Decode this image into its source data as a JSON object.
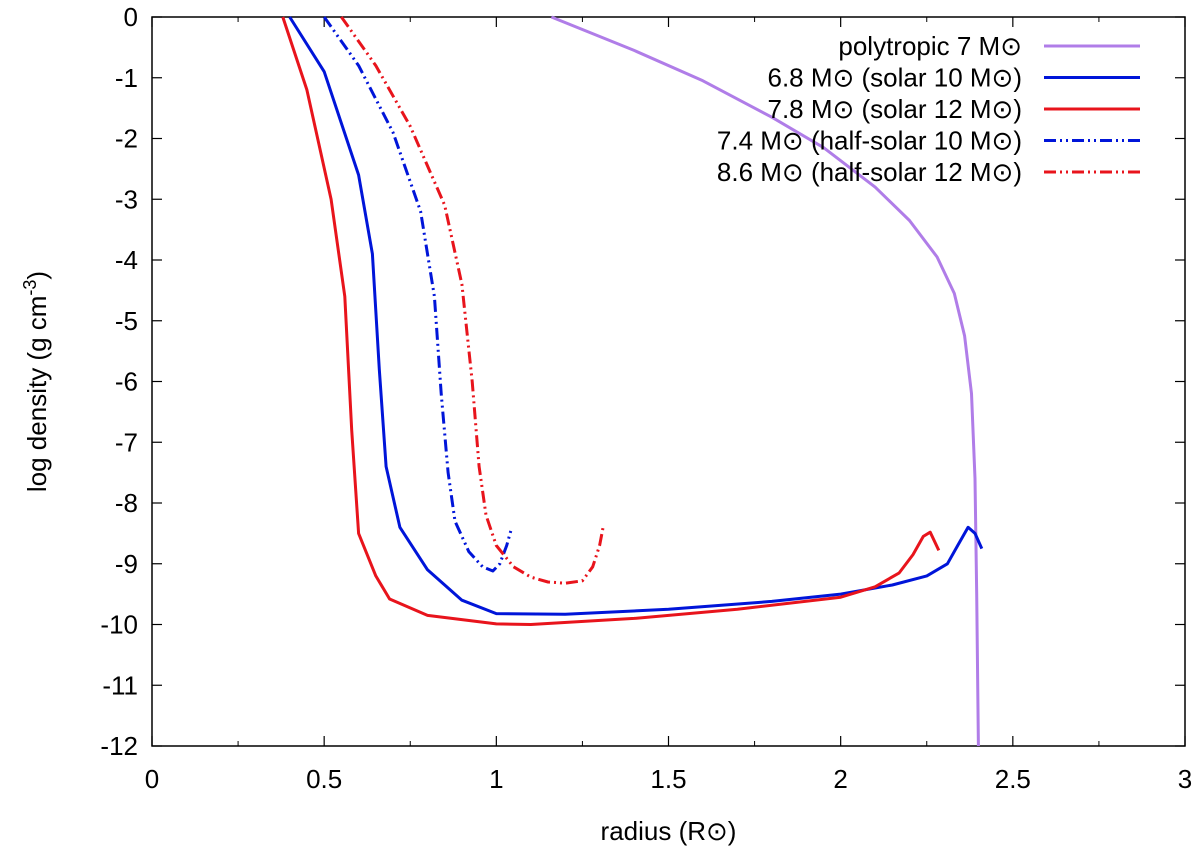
{
  "chart_data": {
    "type": "line",
    "xlabel": "radius (R⊙)",
    "ylabel_prefix": "log density (g cm",
    "ylabel_exponent": "-3",
    "ylabel_suffix": ")",
    "xlim": [
      0,
      3
    ],
    "ylim": [
      -12,
      0
    ],
    "xticks": [
      0,
      0.5,
      1,
      1.5,
      2,
      2.5,
      3
    ],
    "xtick_labels": [
      "0",
      "0.5",
      "1",
      "1.5",
      "2",
      "2.5",
      "3"
    ],
    "yticks": [
      0,
      -1,
      -2,
      -3,
      -4,
      -5,
      -6,
      -7,
      -8,
      -9,
      -10,
      -11,
      -12
    ],
    "ytick_labels": [
      "0",
      "-1",
      "-2",
      "-3",
      "-4",
      "-5",
      "-6",
      "-7",
      "-8",
      "-9",
      "-10",
      "-11",
      "-12"
    ],
    "grid": false,
    "legend_position": "top-right",
    "series": [
      {
        "name": "polytropic 7 M⊙",
        "color": "#b07de8",
        "dash": "solid",
        "x": [
          1.16,
          1.4,
          1.6,
          1.8,
          1.95,
          2.1,
          2.2,
          2.28,
          2.33,
          2.36,
          2.38,
          2.39,
          2.395,
          2.4
        ],
        "y": [
          0,
          -0.55,
          -1.05,
          -1.65,
          -2.15,
          -2.8,
          -3.35,
          -3.95,
          -4.55,
          -5.25,
          -6.2,
          -7.6,
          -9.5,
          -12
        ]
      },
      {
        "name": "6.8 M⊙ (solar 10 M⊙)",
        "color": "#0015d9",
        "dash": "solid",
        "x": [
          0.4,
          0.5,
          0.6,
          0.64,
          0.66,
          0.68,
          0.72,
          0.8,
          0.9,
          1.0,
          1.2,
          1.5,
          1.8,
          2.0,
          2.15,
          2.25,
          2.31,
          2.34,
          2.37,
          2.39,
          2.41
        ],
        "y": [
          0,
          -0.9,
          -2.6,
          -3.9,
          -5.8,
          -7.4,
          -8.4,
          -9.1,
          -9.6,
          -9.82,
          -9.83,
          -9.75,
          -9.62,
          -9.5,
          -9.35,
          -9.2,
          -9.0,
          -8.7,
          -8.4,
          -8.5,
          -8.75
        ]
      },
      {
        "name": "7.8 M⊙ (solar 12 M⊙)",
        "color": "#e8141c",
        "dash": "solid",
        "x": [
          0.38,
          0.45,
          0.52,
          0.56,
          0.58,
          0.6,
          0.65,
          0.69,
          0.8,
          1.0,
          1.1,
          1.4,
          1.7,
          2.0,
          2.1,
          2.17,
          2.21,
          2.24,
          2.26,
          2.285
        ],
        "y": [
          0,
          -1.2,
          -3.0,
          -4.6,
          -6.8,
          -8.5,
          -9.2,
          -9.58,
          -9.85,
          -9.99,
          -10.0,
          -9.9,
          -9.75,
          -9.55,
          -9.38,
          -9.15,
          -8.85,
          -8.55,
          -8.48,
          -8.78
        ]
      },
      {
        "name": "7.4 M⊙ (half-solar 10 M⊙)",
        "color": "#0015d9",
        "dash": "dashdotdot",
        "x": [
          0.5,
          0.6,
          0.7,
          0.78,
          0.82,
          0.84,
          0.86,
          0.88,
          0.92,
          0.96,
          0.99,
          1.01,
          1.03,
          1.045
        ],
        "y": [
          0,
          -0.8,
          -1.9,
          -3.2,
          -4.6,
          -6.2,
          -7.5,
          -8.3,
          -8.8,
          -9.05,
          -9.12,
          -9.0,
          -8.7,
          -8.4
        ]
      },
      {
        "name": "8.6 M⊙ (half-solar 12 M⊙)",
        "color": "#e8141c",
        "dash": "dashdotdot",
        "x": [
          0.55,
          0.65,
          0.75,
          0.85,
          0.9,
          0.93,
          0.95,
          0.97,
          1.0,
          1.05,
          1.1,
          1.15,
          1.2,
          1.25,
          1.28,
          1.3,
          1.31
        ],
        "y": [
          0,
          -0.8,
          -1.8,
          -3.1,
          -4.4,
          -6.0,
          -7.4,
          -8.2,
          -8.7,
          -9.05,
          -9.22,
          -9.3,
          -9.32,
          -9.28,
          -9.05,
          -8.7,
          -8.4
        ]
      }
    ]
  }
}
